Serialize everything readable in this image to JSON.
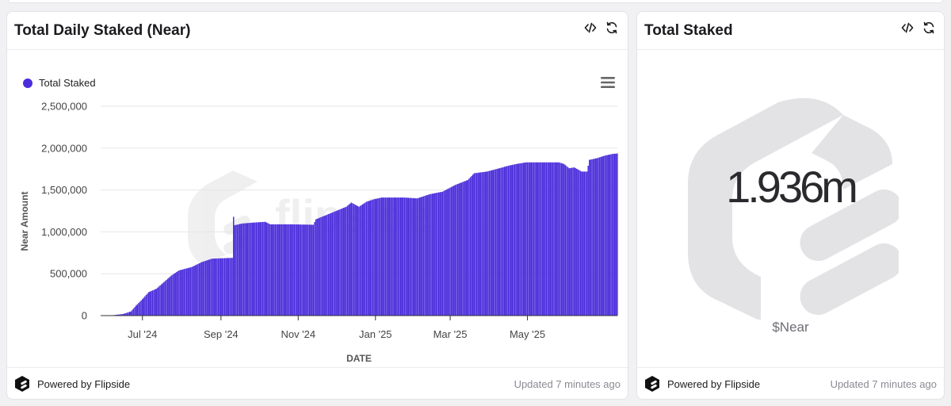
{
  "colors": {
    "accent": "#4b2ddb",
    "text": "#1b1b1f",
    "muted": "#8a8a93"
  },
  "left_card": {
    "title": "Total Daily Staked (Near)",
    "footer": {
      "powered_by": "Powered by Flipside",
      "updated": "Updated 7 minutes ago"
    },
    "watermark_text": "flipside"
  },
  "right_card": {
    "title": "Total Staked",
    "value": "1.936m",
    "unit": "$Near",
    "footer": {
      "powered_by": "Powered by Flipside",
      "updated": "Updated 7 minutes ago"
    }
  },
  "icons": {
    "embed": "code-icon",
    "refresh": "refresh-icon",
    "menu": "hamburger-icon",
    "brand": "flipside-logo-icon"
  },
  "chart_data": {
    "type": "bar",
    "title": "Total Daily Staked (Near)",
    "xlabel": "DATE",
    "ylabel": "Near Amount",
    "ylim": [
      0,
      2500000
    ],
    "yticks": [
      0,
      500000,
      1000000,
      1500000,
      2000000,
      2500000
    ],
    "ytick_labels": [
      "0",
      "500,000",
      "1,000,000",
      "1,500,000",
      "2,000,000",
      "2,500,000"
    ],
    "xticks": [
      {
        "label": "Jul '24",
        "day": 33
      },
      {
        "label": "Sep '24",
        "day": 95
      },
      {
        "label": "Nov '24",
        "day": 156
      },
      {
        "label": "Jan '25",
        "day": 217
      },
      {
        "label": "Mar '25",
        "day": 276
      },
      {
        "label": "May '25",
        "day": 337
      }
    ],
    "day_range": [
      0,
      408
    ],
    "legend": [
      {
        "name": "Total Staked",
        "color": "#4b2ddb"
      }
    ],
    "legend_position": "top-left",
    "grid": true,
    "series_knots_note": "daily values (Near), piecewise-linear between [day, value] knots, read from gridlines",
    "series": [
      {
        "name": "Total Staked",
        "knots": [
          [
            0,
            0
          ],
          [
            10,
            5000
          ],
          [
            18,
            20000
          ],
          [
            24,
            50000
          ],
          [
            28,
            120000
          ],
          [
            32,
            180000
          ],
          [
            38,
            280000
          ],
          [
            44,
            320000
          ],
          [
            50,
            400000
          ],
          [
            56,
            480000
          ],
          [
            62,
            540000
          ],
          [
            72,
            580000
          ],
          [
            80,
            640000
          ],
          [
            88,
            680000
          ],
          [
            104,
            690000
          ],
          [
            105,
            1180000
          ],
          [
            106,
            1080000
          ],
          [
            112,
            1100000
          ],
          [
            120,
            1110000
          ],
          [
            130,
            1120000
          ],
          [
            134,
            1090000
          ],
          [
            150,
            1090000
          ],
          [
            168,
            1085000
          ],
          [
            170,
            1150000
          ],
          [
            178,
            1200000
          ],
          [
            186,
            1250000
          ],
          [
            194,
            1300000
          ],
          [
            198,
            1350000
          ],
          [
            204,
            1300000
          ],
          [
            210,
            1360000
          ],
          [
            216,
            1390000
          ],
          [
            222,
            1410000
          ],
          [
            240,
            1410000
          ],
          [
            250,
            1400000
          ],
          [
            260,
            1450000
          ],
          [
            270,
            1480000
          ],
          [
            280,
            1560000
          ],
          [
            290,
            1620000
          ],
          [
            295,
            1700000
          ],
          [
            305,
            1720000
          ],
          [
            315,
            1760000
          ],
          [
            322,
            1790000
          ],
          [
            328,
            1810000
          ],
          [
            336,
            1830000
          ],
          [
            362,
            1830000
          ],
          [
            366,
            1810000
          ],
          [
            370,
            1760000
          ],
          [
            374,
            1770000
          ],
          [
            380,
            1720000
          ],
          [
            384,
            1720000
          ],
          [
            386,
            1860000
          ],
          [
            392,
            1880000
          ],
          [
            398,
            1910000
          ],
          [
            404,
            1930000
          ],
          [
            408,
            1936000
          ]
        ]
      }
    ]
  }
}
